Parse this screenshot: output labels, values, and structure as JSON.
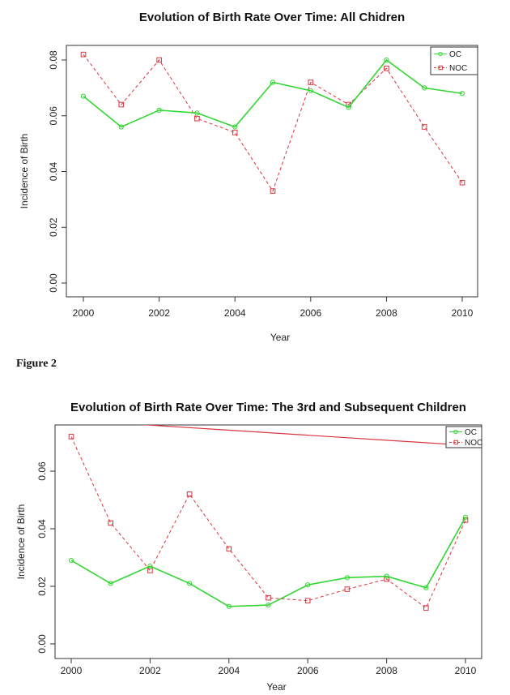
{
  "figure_caption": "Figure 2",
  "chart_data": [
    {
      "type": "line",
      "title": "Evolution of Birth Rate Over Time: All Chidren",
      "xlabel": "Year",
      "ylabel": "Incidence of Birth",
      "xlim": [
        2000,
        2010
      ],
      "ylim": [
        0,
        0.08
      ],
      "x_ticks": [
        "2000",
        "2002",
        "2004",
        "2006",
        "2008",
        "2010"
      ],
      "y_ticks": [
        "0.00",
        "0.02",
        "0.04",
        "0.06",
        "0.08"
      ],
      "grid": false,
      "legend_position": "top-right",
      "x": [
        2000,
        2001,
        2002,
        2003,
        2004,
        2005,
        2006,
        2007,
        2008,
        2009,
        2010
      ],
      "series": [
        {
          "name": "OC",
          "color": "#33d633",
          "line_style": "solid",
          "marker": "circle",
          "values": [
            0.067,
            0.056,
            0.062,
            0.061,
            0.056,
            0.072,
            0.069,
            0.063,
            0.08,
            0.07,
            0.068
          ]
        },
        {
          "name": "NOC",
          "color": "#d9363e",
          "line_style": "dashed",
          "marker": "square",
          "values": [
            0.082,
            0.064,
            0.08,
            0.059,
            0.054,
            0.033,
            0.072,
            0.064,
            0.077,
            0.056,
            0.036
          ]
        }
      ]
    },
    {
      "type": "line",
      "title": "Evolution of Birth Rate Over Time: The 3rd and Subsequent Children",
      "xlabel": "Year",
      "ylabel": "Incidence of Birth",
      "xlim": [
        2000,
        2010
      ],
      "ylim": [
        0,
        0.06
      ],
      "x_ticks": [
        "2000",
        "2002",
        "2004",
        "2006",
        "2008",
        "2010"
      ],
      "y_ticks": [
        "0.00",
        "0.02",
        "0.04",
        "0.06"
      ],
      "grid": false,
      "legend_position": "top-right",
      "x": [
        2000,
        2001,
        2002,
        2003,
        2004,
        2005,
        2006,
        2007,
        2008,
        2009,
        2010
      ],
      "series": [
        {
          "name": "OC",
          "color": "#33d633",
          "line_style": "solid",
          "marker": "circle",
          "values": [
            0.029,
            0.021,
            0.027,
            0.021,
            0.013,
            0.0135,
            0.0205,
            0.023,
            0.0235,
            0.0195,
            0.044
          ]
        },
        {
          "name": "NOC",
          "color": "#d9363e",
          "line_style": "dashed",
          "marker": "square",
          "values": [
            0.072,
            0.042,
            0.0255,
            0.052,
            0.033,
            0.016,
            0.015,
            0.019,
            0.0225,
            0.0125,
            0.043
          ]
        }
      ],
      "extra_line": {
        "color": "#d9363e",
        "x": [
          1999.7,
          2010
        ],
        "y": [
          0.078,
          0.069
        ]
      }
    }
  ]
}
